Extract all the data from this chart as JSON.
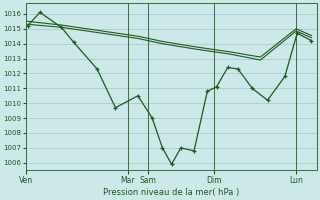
{
  "background_color": "#cce8e8",
  "grid_color": "#aacccc",
  "line_color": "#1a5c1a",
  "xlabel": "Pression niveau de la mer( hPa )",
  "ylim": [
    1005.5,
    1016.7
  ],
  "yticks": [
    1006,
    1007,
    1008,
    1009,
    1010,
    1011,
    1012,
    1013,
    1014,
    1015,
    1016
  ],
  "day_labels": [
    "Ven",
    "Mar",
    "Sam",
    "Dim",
    "Lun"
  ],
  "day_x": [
    0,
    100,
    120,
    185,
    265
  ],
  "xlim": [
    0,
    285
  ],
  "line1_x": [
    2,
    14,
    35,
    47,
    70,
    88,
    110,
    124,
    134,
    143,
    152,
    165,
    178,
    187,
    198,
    208,
    222,
    237,
    254,
    266,
    280
  ],
  "line1_y": [
    1015.2,
    1016.1,
    1015.1,
    1014.1,
    1012.3,
    1009.7,
    1010.5,
    1009.0,
    1007.0,
    1005.9,
    1007.0,
    1006.8,
    1010.8,
    1011.1,
    1012.4,
    1012.3,
    1011.0,
    1010.2,
    1011.8,
    1014.7,
    1014.2
  ],
  "line2_x": [
    2,
    35,
    70,
    110,
    134,
    165,
    200,
    230,
    265,
    280
  ],
  "line2_y": [
    1015.3,
    1015.1,
    1014.75,
    1014.35,
    1014.0,
    1013.65,
    1013.3,
    1012.9,
    1014.85,
    1014.4
  ],
  "line3_x": [
    2,
    35,
    70,
    110,
    134,
    165,
    200,
    230,
    265,
    280
  ],
  "line3_y": [
    1015.5,
    1015.25,
    1014.9,
    1014.5,
    1014.15,
    1013.8,
    1013.45,
    1013.1,
    1015.0,
    1014.55
  ]
}
